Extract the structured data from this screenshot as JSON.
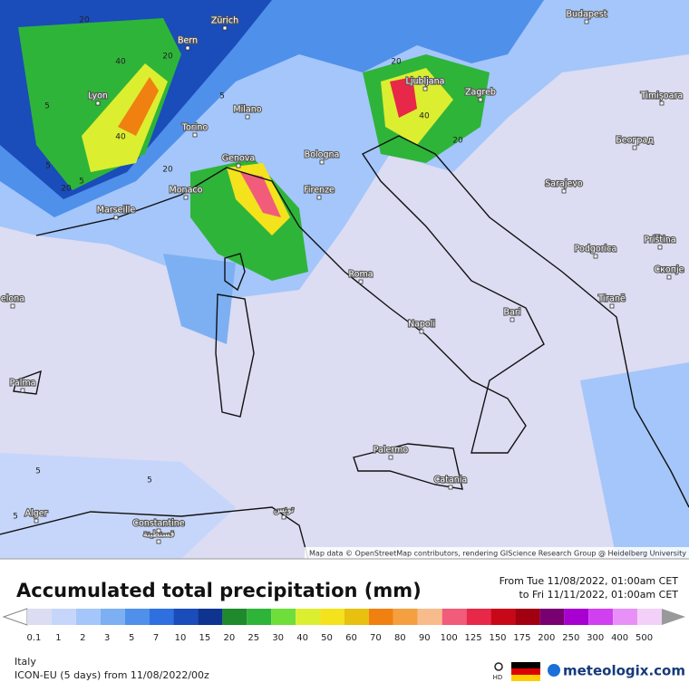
{
  "map": {
    "cities": [
      "Zürich",
      "Bern",
      "Lyon",
      "Milano",
      "Torino",
      "Genova",
      "Monaco",
      "Marseille",
      "Bologna",
      "Firenze",
      "Roma",
      "Napoli",
      "Bari",
      "Palermo",
      "Catania",
      "Ljubljana",
      "Zagreb",
      "Budapest",
      "Timișoara",
      "Београд",
      "Sarajevo",
      "Podgorica",
      "Priština",
      "Скопје",
      "Tiranë",
      "Palma",
      "elona",
      "Alger",
      "Constantine",
      "قسنطينة",
      "تونس"
    ],
    "contour_labels": [
      20,
      40,
      5,
      20,
      40,
      20,
      20,
      5,
      20,
      40,
      20,
      5,
      5,
      5,
      5,
      5
    ],
    "attribution": "Map data © OpenStreetMap contributors, rendering GIScience Research Group @ Heidelberg University"
  },
  "legend": {
    "title": "Accumulated total precipitation (mm)",
    "period_from": "From Tue 11/08/2022, 01:00am CET",
    "period_to": "to Fri 11/11/2022, 01:00am CET",
    "levels": [
      0.1,
      1,
      2,
      3,
      5,
      7,
      10,
      15,
      20,
      25,
      30,
      40,
      50,
      60,
      70,
      80,
      90,
      100,
      125,
      150,
      175,
      200,
      250,
      300,
      400,
      500
    ],
    "colors": [
      "#dcdcf2",
      "#c6d6fa",
      "#a4c6fa",
      "#7db0f2",
      "#4f90ea",
      "#2f70e0",
      "#1a4cba",
      "#0e3490",
      "#1e8a2c",
      "#2fb43a",
      "#6ede3a",
      "#dcee30",
      "#f4e21c",
      "#e8c010",
      "#f08010",
      "#f4a040",
      "#f8bc8c",
      "#f05c7a",
      "#e82848",
      "#c80818",
      "#a00010",
      "#780070",
      "#a800d0",
      "#d040f0",
      "#e890f8",
      "#f2d0f8"
    ]
  },
  "footer": {
    "region": "Italy",
    "model": "ICON-EU (5 days) from 11/08/2022/00z",
    "hd": "HD",
    "brand": "meteologix.com"
  }
}
